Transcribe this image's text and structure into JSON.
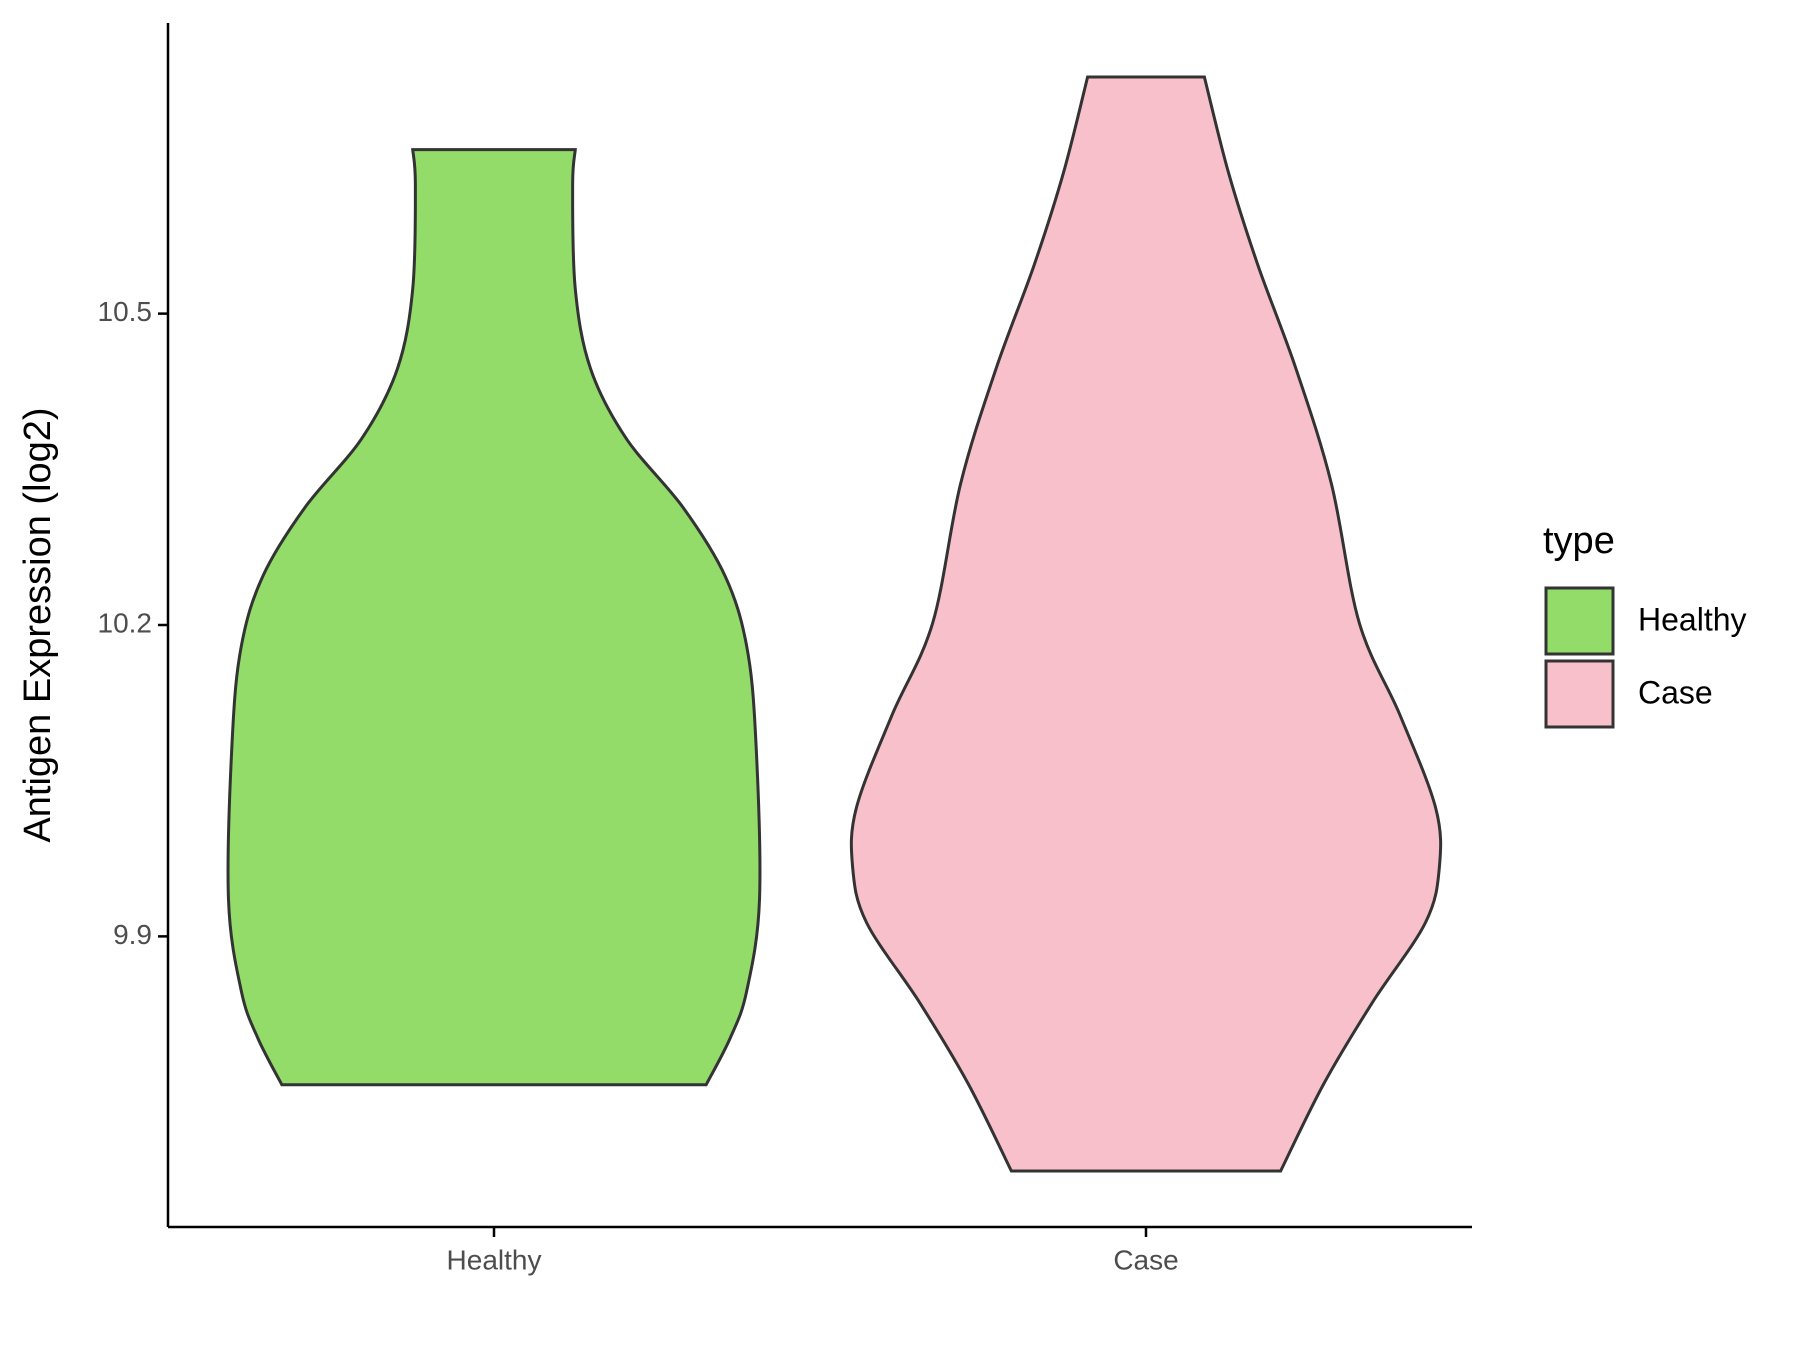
{
  "chart_data": {
    "type": "violin",
    "ylabel": "Antigen Expression (log2)",
    "categories": [
      "Healthy",
      "Case"
    ],
    "ylim": [
      9.62,
      10.78
    ],
    "yticks": [
      9.9,
      10.2,
      10.5
    ],
    "legend_title": "type",
    "legend_position": "right",
    "series": [
      {
        "name": "Healthy",
        "color": "#93dc6a",
        "y": [
          10.658,
          10.624,
          10.524,
          10.447,
          10.38,
          10.313,
          10.247,
          10.18,
          10.091,
          9.936,
          9.847,
          9.802,
          9.757
        ],
        "density": [
          0.277,
          0.268,
          0.277,
          0.329,
          0.45,
          0.645,
          0.788,
          0.861,
          0.892,
          0.905,
          0.861,
          0.805,
          0.723
        ]
      },
      {
        "name": "Case",
        "color": "#f7c0cb",
        "y": [
          10.728,
          10.636,
          10.547,
          10.447,
          10.336,
          10.202,
          10.113,
          10.024,
          9.967,
          9.913,
          9.836,
          9.758,
          9.674
        ],
        "density": [
          0.199,
          0.281,
          0.381,
          0.511,
          0.632,
          0.727,
          0.866,
          0.987,
          1,
          0.952,
          0.771,
          0.606,
          0.459
        ]
      }
    ]
  }
}
